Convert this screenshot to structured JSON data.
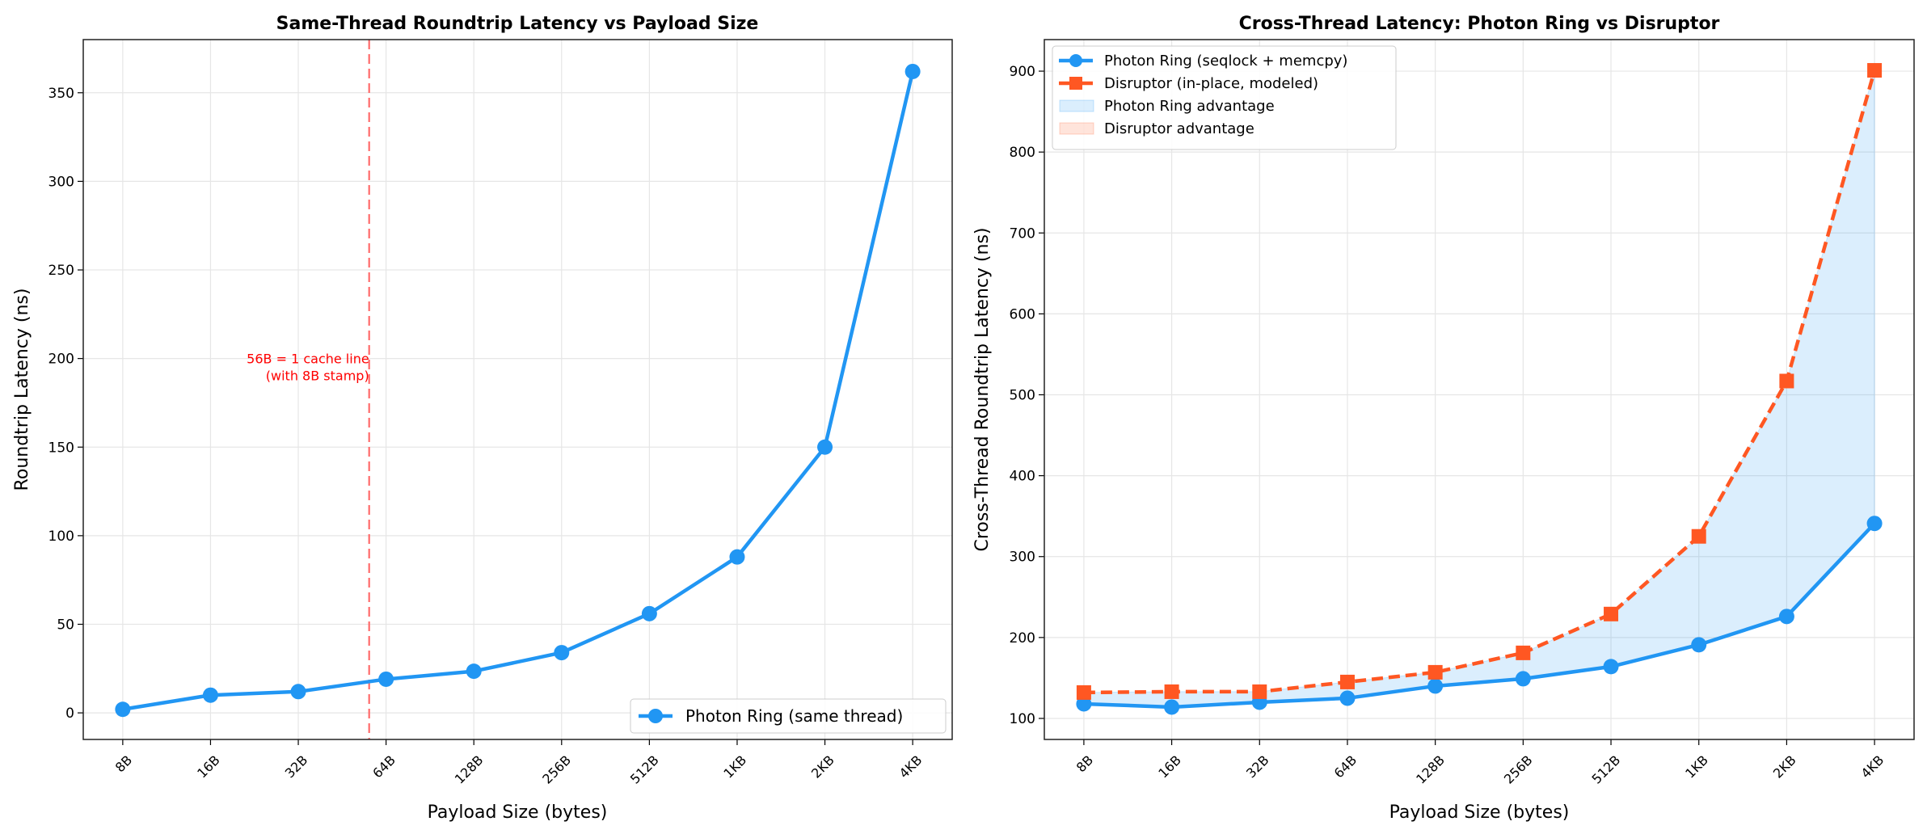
{
  "chart_data": [
    {
      "type": "line",
      "title": "Same-Thread Roundtrip Latency vs Payload Size",
      "xlabel": "Payload Size (bytes)",
      "ylabel": "Roundtrip Latency (ns)",
      "categories": [
        "8B",
        "16B",
        "32B",
        "64B",
        "128B",
        "256B",
        "512B",
        "1KB",
        "2KB",
        "4KB"
      ],
      "ylim": [
        -15,
        380
      ],
      "yticks": [
        0,
        50,
        100,
        150,
        200,
        250,
        300,
        350
      ],
      "grid": true,
      "legend_position": "lower-right",
      "series": [
        {
          "name": "Photon Ring (same thread)",
          "color": "#2196F3",
          "marker": "circle",
          "values": [
            2,
            10,
            12,
            19,
            23.5,
            34,
            56,
            88,
            150,
            362
          ]
        }
      ],
      "vline": {
        "x_bytes": 56,
        "color": "#FF6B6B",
        "style": "dashed"
      },
      "annotation": {
        "lines": [
          "56B = 1 cache line",
          "(with 8B stamp)"
        ],
        "color": "#FF0000"
      }
    },
    {
      "type": "line",
      "title": "Cross-Thread Latency: Photon Ring vs Disruptor",
      "xlabel": "Payload Size (bytes)",
      "ylabel": "Cross-Thread Roundtrip Latency (ns)",
      "categories": [
        "8B",
        "16B",
        "32B",
        "64B",
        "128B",
        "256B",
        "512B",
        "1KB",
        "2KB",
        "4KB"
      ],
      "ylim": [
        74,
        939
      ],
      "yticks": [
        100,
        200,
        300,
        400,
        500,
        600,
        700,
        800,
        900
      ],
      "grid": true,
      "legend_position": "top-left",
      "series": [
        {
          "name": "Photon Ring (seqlock + memcpy)",
          "color": "#2196F3",
          "marker": "circle",
          "style": "solid",
          "values": [
            118,
            114,
            120,
            125,
            140,
            149,
            164,
            191,
            226,
            341
          ]
        },
        {
          "name": "Disruptor (in-place, modeled)",
          "color": "#FF5722",
          "marker": "square",
          "style": "dashed",
          "values": [
            132,
            133,
            133,
            145,
            157,
            181,
            229,
            325,
            517,
            901
          ]
        }
      ],
      "fills": [
        {
          "name": "Photon Ring advantage",
          "color": "#2196F3"
        },
        {
          "name": "Disruptor advantage",
          "color": "#FF5722"
        }
      ]
    }
  ]
}
